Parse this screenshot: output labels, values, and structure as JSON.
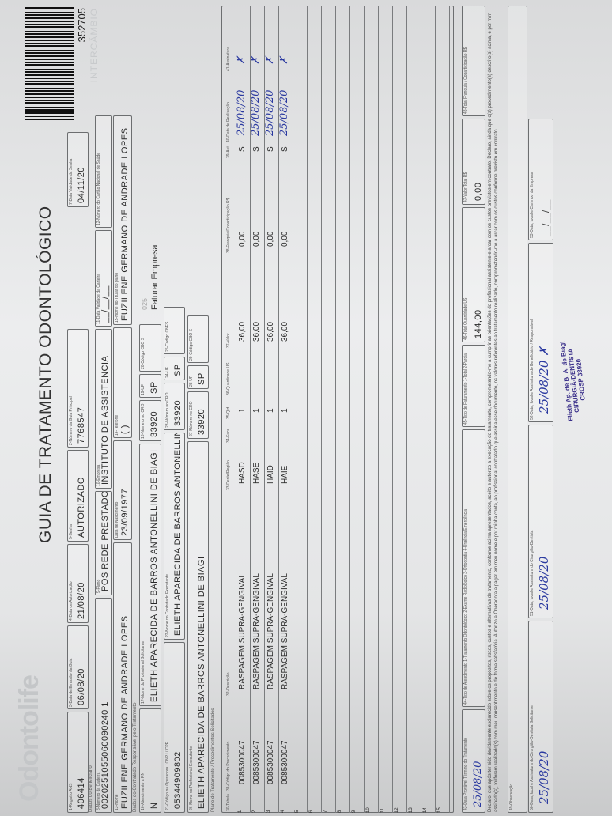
{
  "header": {
    "logo": "Odontolife",
    "title": "GUIA DE TRATAMENTO ODONTOLÓGICO",
    "barcode_number": "352705",
    "tag": "INTERCÂMBIO",
    "section_beneficiary": "Dados do Beneficiário",
    "section_contractor": "Dados do Contratado Responsável pelo Tratamento",
    "section_plan": "Plano de Tratamento / Procedimentos Solicitados",
    "billing_code": "025",
    "billing_note": "Faturar Empresa"
  },
  "fields": [
    {
      "label": "1-Registro ANS",
      "value": "406414"
    },
    {
      "label": "3-Data de Emissão da Guia",
      "value": "06/08/20"
    },
    {
      "label": "4-Data de Autorização",
      "value": "21/08/20"
    },
    {
      "label": "5-Senha",
      "value": "AUTORIZADO"
    },
    {
      "label": "2-Número da Guia Principal",
      "value": "7768547"
    },
    {
      "label": "7-Data Validade da Senha",
      "value": "04/11/20"
    },
    {
      "label": "8-Número da Carteira",
      "value": "0020251055060090240 1"
    },
    {
      "label": "9-Plano",
      "value": "POS REDE PRESTADORA"
    },
    {
      "label": "10-Empresa",
      "value": "INSTITUTO DE ASSISTENCIA"
    },
    {
      "label": "11-Data Validade da Carteira",
      "value": "__/__/__"
    },
    {
      "label": "12-Número do Cartão Nacional de Saúde",
      "value": ""
    },
    {
      "label": "13-Nome",
      "value": "EUZILENE GERMANO DE ANDRADE LOPES"
    },
    {
      "label": "Data de Nascimento",
      "value": "23/09/1977"
    },
    {
      "label": "14-Telefone",
      "value": "(   )"
    },
    {
      "label": "15-Nome do Titular do plano",
      "value": "EUZILENE GERMANO DE ANDRADE LOPES"
    },
    {
      "label": "16-Atendimento a RN",
      "value": "N"
    },
    {
      "label": "17-Nome do Profissional Solicitante",
      "value": "ELIETH APARECIDA DE BARROS ANTONELLINI DE BIAGI"
    },
    {
      "label": "18-Número no CRO",
      "value": "33920"
    },
    {
      "label": "19-UF",
      "value": "SP"
    },
    {
      "label": "20-Código CBO S",
      "value": ""
    },
    {
      "label": "21-Código na Operadora / CNPJ / CPF",
      "value": "05344909802"
    },
    {
      "label": "22-Nome do Contratado Executante",
      "value": "ELIETH APARECIDA DE BARROS ANTONELLINI DE"
    },
    {
      "label": "23-Número no CRO",
      "value": "33920"
    },
    {
      "label": "24-UF",
      "value": "SP"
    },
    {
      "label": "25-Código CNES",
      "value": ""
    },
    {
      "label": "26-Nome do Profissional Executante",
      "value": "ELIETH APARECIDA DE BARROS ANTONELLINI DE BIAGI"
    },
    {
      "label": "27-Número no CRO",
      "value": "33920"
    },
    {
      "label": "28-UF",
      "value": "SP"
    },
    {
      "label": "29-Código CBO S",
      "value": ""
    }
  ],
  "table": {
    "columns": [
      "30-Tabela",
      "31-Código do Procedimento",
      "32-Descrição",
      "33-Dente/Região",
      "34-Face",
      "35-Qtd",
      "36-Quantidade US",
      "37-Valor",
      "38-Franquia/Coparticipação R$",
      "39-Aut",
      "40-Data de Realização",
      "41-Assinatura"
    ],
    "rows": [
      {
        "n": "1",
        "code": "0085300047",
        "desc": "RASPAGEM SUPRA-GENGIVAL",
        "tooth": "HASD",
        "qty": "1",
        "value": "36,00",
        "franchise": "0,00",
        "aut": "S",
        "date": "25/08/20",
        "sign": "✗"
      },
      {
        "n": "2",
        "code": "0085300047",
        "desc": "RASPAGEM SUPRA-GENGIVAL",
        "tooth": "HASE",
        "qty": "1",
        "value": "36,00",
        "franchise": "0,00",
        "aut": "S",
        "date": "25/08/20",
        "sign": "✗"
      },
      {
        "n": "3",
        "code": "0085300047",
        "desc": "RASPAGEM SUPRA-GENGIVAL",
        "tooth": "HAID",
        "qty": "1",
        "value": "36,00",
        "franchise": "0,00",
        "aut": "S",
        "date": "25/08/20",
        "sign": "✗"
      },
      {
        "n": "4",
        "code": "0085300047",
        "desc": "RASPAGEM SUPRA-GENGIVAL",
        "tooth": "HAIE",
        "qty": "1",
        "value": "36,00",
        "franchise": "0,00",
        "aut": "S",
        "date": "25/08/20",
        "sign": "✗"
      },
      {
        "n": "5"
      },
      {
        "n": "6"
      },
      {
        "n": "7"
      },
      {
        "n": "8"
      },
      {
        "n": "9"
      },
      {
        "n": "10"
      },
      {
        "n": "11"
      },
      {
        "n": "12"
      },
      {
        "n": "13"
      },
      {
        "n": "14"
      },
      {
        "n": "15"
      }
    ]
  },
  "footer": [
    {
      "label": "43-Data Provável Término do Tratamento",
      "value": "25/08/20",
      "hand": true
    },
    {
      "label": "44-Tipo de Atendimento   1-Tratamento Odontológico  2-Exame Radiológico  3-Ortodontia  4-Urgência/Emergência",
      "value": ""
    },
    {
      "label": "45-Tipo de Faturamento   1-Total  2-Parcial",
      "value": ""
    },
    {
      "label": "46-Total Quantidade US",
      "value": "144,00"
    },
    {
      "label": "47-Valor Total R$",
      "value": "0,00"
    },
    {
      "label": "48-Total Franquia / Coparticipação R$",
      "value": ""
    }
  ],
  "declaration": "Declaro, que após ter sido devidamente esclarecido sobre os propósitos, riscos, custos e alternativas de tratamento, conforme acima apresentados, aceito e autorizo a execução do tratamento, comprometendo-me a cumprir as orientações do profissional assistente e arcar com os custos previstos em contrato. Declaro, ainda que o(s) procedimento(s) descrito(s) acima, e por mim assinado(s), foi/foram realizado(s) com meu consentimento e de forma satisfatória. Autorizo a Operadora a pagar em meu nome e por minha conta, ao profissional contratado que assina esse documento, os valores referentes ao tratamento realizado, comprometendo-me a arcar com os custos conforme previsto em contrato.",
  "observation_label": "49-Observação",
  "signatures": [
    {
      "label": "50-Data, local e Assinatura do Cirurgião-Dentista Solicitante",
      "value": "25/08/20"
    },
    {
      "label": "51-Data, local e Assinatura do Cirurgião-Dentista",
      "value": "25/08/20"
    },
    {
      "label": "52-Data, local e Assinatura do Beneficiário / Responsável",
      "value": "25/08/20 ✗"
    },
    {
      "label": "53-Data, local e Carimbo da Empresa",
      "value": "__/__/__"
    }
  ],
  "stamp": {
    "line1": "Elieth Ap. de B. A. de Biagi",
    "line2": "CIRURGIÃ-DENTISTA",
    "line3": "CROSP 33920"
  },
  "colors": {
    "ink": "#2b3aa0",
    "stamp": "#3a2f8a",
    "print": "#2a2a2a"
  }
}
